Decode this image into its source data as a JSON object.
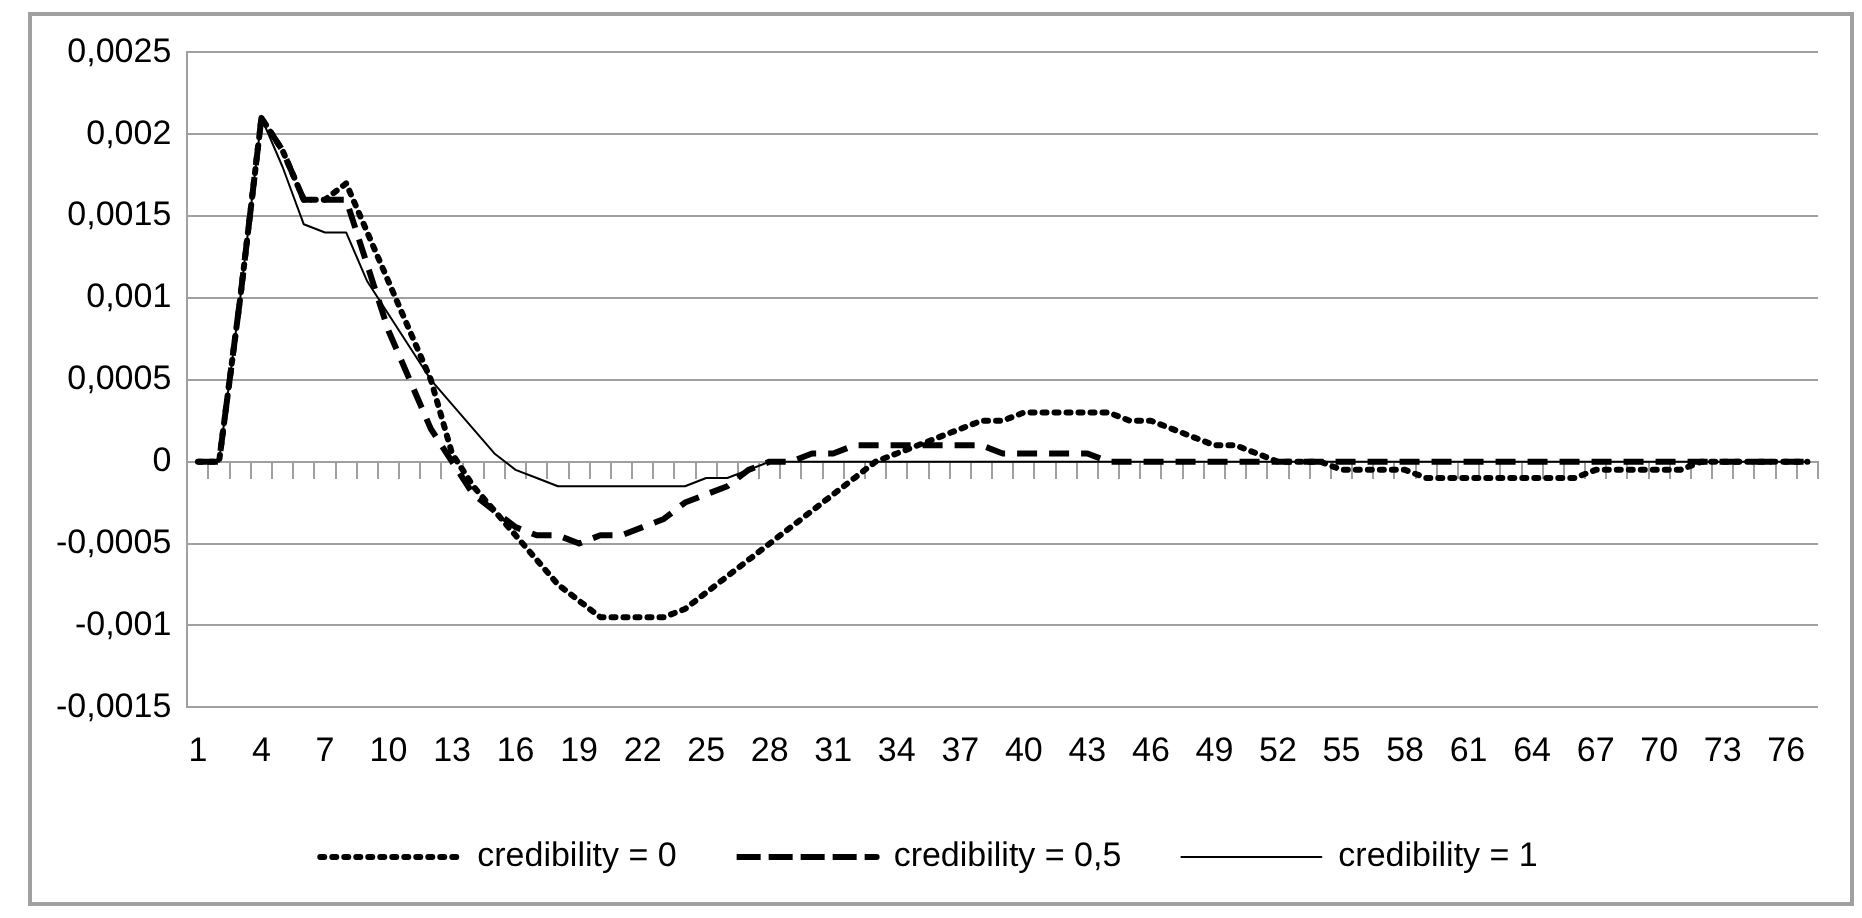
{
  "chart_data": {
    "type": "line",
    "categories": [
      "1",
      null,
      null,
      "4",
      null,
      null,
      "7",
      null,
      null,
      "10",
      null,
      null,
      "13",
      null,
      null,
      "16",
      null,
      null,
      "19",
      null,
      null,
      "22",
      null,
      null,
      "25",
      null,
      null,
      "28",
      null,
      null,
      "31",
      null,
      null,
      "34",
      null,
      null,
      "37",
      null,
      null,
      "40",
      null,
      null,
      "43",
      null,
      null,
      "46",
      null,
      null,
      "49",
      null,
      null,
      "52",
      null,
      null,
      "55",
      null,
      null,
      "58",
      null,
      null,
      "61",
      null,
      null,
      "64",
      null,
      null,
      "67",
      null,
      null,
      "70",
      null,
      null,
      "73",
      null,
      null,
      "76",
      null
    ],
    "series": [
      {
        "name": "credibility = 0",
        "color": "#000000",
        "line_style": "dotted",
        "values": [
          0,
          0,
          0.001,
          0.0021,
          0.0019,
          0.0016,
          0.0016,
          0.0017,
          0.0014,
          0.0011,
          0.0008,
          0.0005,
          5e-05,
          -0.00015,
          -0.0003,
          -0.00045,
          -0.0006,
          -0.00075,
          -0.00085,
          -0.00095,
          -0.00095,
          -0.00095,
          -0.00095,
          -0.0009,
          -0.0008,
          -0.0007,
          -0.0006,
          -0.0005,
          -0.0004,
          -0.0003,
          -0.0002,
          -0.0001,
          0,
          5e-05,
          0.0001,
          0.00015,
          0.0002,
          0.00025,
          0.00025,
          0.0003,
          0.0003,
          0.0003,
          0.0003,
          0.0003,
          0.00025,
          0.00025,
          0.0002,
          0.00015,
          0.0001,
          0.0001,
          5e-05,
          0,
          0,
          0,
          -5e-05,
          -5e-05,
          -5e-05,
          -5e-05,
          -0.0001,
          -0.0001,
          -0.0001,
          -0.0001,
          -0.0001,
          -0.0001,
          -0.0001,
          -0.0001,
          -5e-05,
          -5e-05,
          -5e-05,
          -5e-05,
          -5e-05,
          0,
          0,
          0,
          0,
          0,
          0
        ]
      },
      {
        "name": "credibility = 0,5",
        "color": "#000000",
        "line_style": "dashed",
        "values": [
          0,
          0,
          0.001,
          0.0021,
          0.0019,
          0.0016,
          0.0016,
          0.0016,
          0.0012,
          0.0008,
          0.0005,
          0.0002,
          0,
          -0.0002,
          -0.0003,
          -0.0004,
          -0.00045,
          -0.00045,
          -0.0005,
          -0.00045,
          -0.00045,
          -0.0004,
          -0.00035,
          -0.00025,
          -0.0002,
          -0.00015,
          -5e-05,
          0,
          0,
          5e-05,
          5e-05,
          0.0001,
          0.0001,
          0.0001,
          0.0001,
          0.0001,
          0.0001,
          0.0001,
          5e-05,
          5e-05,
          5e-05,
          5e-05,
          5e-05,
          0,
          0,
          0,
          0,
          0,
          0,
          0,
          0,
          0,
          0,
          0,
          0,
          0,
          0,
          0,
          0,
          0,
          0,
          0,
          0,
          0,
          0,
          0,
          0,
          0,
          0,
          0,
          0,
          0,
          0,
          0,
          0,
          0,
          0
        ]
      },
      {
        "name": "credibility = 1",
        "color": "#000000",
        "line_style": "solid",
        "values": [
          0,
          0,
          0.001,
          0.0021,
          0.0018,
          0.00145,
          0.0014,
          0.0014,
          0.0011,
          0.0009,
          0.0007,
          0.0005,
          0.00035,
          0.0002,
          5e-05,
          -5e-05,
          -0.0001,
          -0.00015,
          -0.00015,
          -0.00015,
          -0.00015,
          -0.00015,
          -0.00015,
          -0.00015,
          -0.0001,
          -0.0001,
          -5e-05,
          0,
          0,
          0,
          0,
          0,
          0,
          0,
          0,
          0,
          0,
          0,
          0,
          0,
          0,
          0,
          0,
          0,
          0,
          0,
          0,
          0,
          0,
          0,
          0,
          0,
          0,
          0,
          0,
          0,
          0,
          0,
          0,
          0,
          0,
          0,
          0,
          0,
          0,
          0,
          0,
          0,
          0,
          0,
          0,
          0,
          0,
          0,
          0,
          0,
          0
        ]
      }
    ],
    "ylim": [
      -0.0015,
      0.0025
    ],
    "yticks": [
      {
        "value": -0.0015,
        "label": "-0,0015"
      },
      {
        "value": -0.001,
        "label": "-0,001"
      },
      {
        "value": -0.0005,
        "label": "-0,0005"
      },
      0,
      {
        "value": 0.0005,
        "label": "0,0005"
      },
      {
        "value": 0.001,
        "label": "0,001"
      },
      {
        "value": 0.0015,
        "label": "0,0015"
      },
      {
        "value": 0.002,
        "label": "0,002"
      },
      {
        "value": 0.0025,
        "label": "0,0025"
      }
    ],
    "grid": "y",
    "legend": "bottom"
  }
}
